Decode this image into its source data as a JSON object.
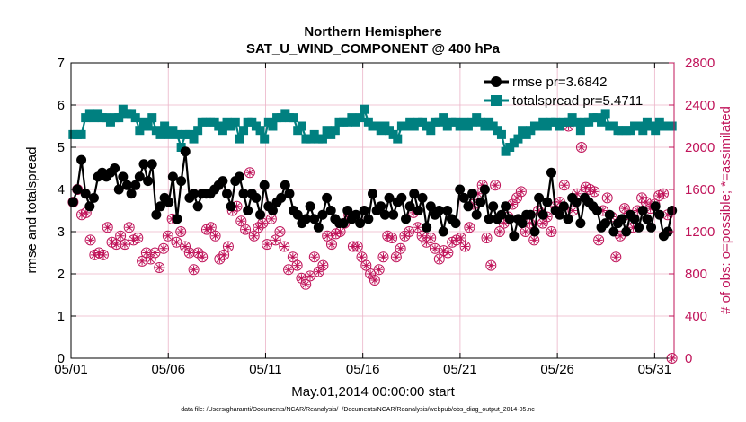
{
  "chart_data": {
    "type": "line",
    "title_line1": "Northern Hemisphere",
    "title_line2": "SAT_U_WIND_COMPONENT @ 400 hPa",
    "xlabel": "May.01,2014 00:00:00 start",
    "ylabel_left": "rmse and totalspread",
    "ylabel_right": "# of obs: o=possible; *=assimilated",
    "footnote": "data file: /Users/gharamti/Documents/NCAR/Reanalysis/~/Documents/NCAR/Reanalysis/webpub/obs_diag_output_2014-05.nc",
    "x_ticks": [
      "05/01",
      "05/06",
      "05/11",
      "05/16",
      "05/21",
      "05/26",
      "05/31"
    ],
    "x_tick_days": [
      1,
      6,
      11,
      16,
      21,
      26,
      31
    ],
    "xlim": [
      1,
      32
    ],
    "ylim_left": [
      0,
      7
    ],
    "ylim_right": [
      0,
      2800
    ],
    "y_ticks_left": [
      "0",
      "1",
      "2",
      "3",
      "4",
      "5",
      "6",
      "7"
    ],
    "y_ticks_right": [
      "0",
      "400",
      "800",
      "1200",
      "1600",
      "2000",
      "2400",
      "2800"
    ],
    "colors": {
      "rmse": "#000000",
      "totalspread": "#008080",
      "obs": "#c0145a",
      "grid": "#ebb4c8"
    },
    "series": [
      {
        "name": "rmse",
        "legend": "rmse pr=3.6842",
        "axis": "left",
        "values": [
          3.7,
          4.0,
          4.7,
          3.9,
          3.6,
          3.8,
          4.3,
          4.4,
          4.3,
          4.4,
          4.5,
          4.0,
          4.3,
          4.1,
          3.9,
          4.1,
          4.3,
          4.6,
          4.2,
          4.6,
          3.4,
          3.6,
          3.8,
          3.7,
          4.3,
          3.3,
          4.2,
          4.9,
          3.8,
          3.9,
          3.6,
          3.9,
          3.9,
          3.9,
          4.0,
          4.1,
          4.2,
          3.9,
          3.6,
          4.2,
          4.3,
          3.9,
          3.5,
          3.9,
          3.8,
          3.4,
          4.1,
          3.6,
          3.5,
          3.7,
          3.8,
          4.1,
          3.9,
          3.5,
          3.4,
          3.2,
          3.3,
          3.6,
          3.3,
          3.1,
          3.4,
          3.8,
          3.5,
          3.3,
          3.2,
          3.2,
          3.5,
          3.3,
          3.4,
          3.2,
          3.5,
          3.3,
          3.9,
          3.5,
          3.6,
          3.4,
          3.8,
          3.4,
          3.7,
          3.8,
          3.3,
          3.6,
          3.9,
          3.5,
          3.8,
          3.1,
          3.6,
          3.4,
          3.5,
          3.0,
          3.5,
          3.3,
          3.2,
          4.0,
          3.8,
          3.6,
          3.9,
          3.4,
          3.7,
          4.0,
          3.3,
          3.6,
          3.3,
          3.4,
          3.6,
          3.3,
          2.9,
          3.3,
          3.2,
          3.4,
          3.4,
          3.0,
          3.8,
          3.4,
          3.7,
          4.4,
          3.5,
          3.4,
          3.6,
          3.3,
          3.8,
          3.7,
          3.2,
          3.8,
          3.7,
          3.6,
          3.5,
          3.1,
          3.2,
          3.4,
          3.0,
          3.2,
          3.3,
          3.0,
          3.4,
          3.3,
          3.1,
          3.5,
          3.3,
          3.1,
          3.6,
          3.4,
          2.9,
          3.0,
          3.5
        ]
      },
      {
        "name": "totalspread",
        "legend": "totalspread pr=5.4711",
        "axis": "left",
        "values": [
          5.3,
          5.3,
          5.3,
          5.7,
          5.8,
          5.7,
          5.8,
          5.7,
          5.7,
          5.6,
          5.7,
          5.7,
          5.9,
          5.8,
          5.8,
          5.7,
          5.4,
          5.6,
          5.5,
          5.7,
          5.4,
          5.3,
          5.5,
          5.3,
          5.4,
          5.3,
          5.0,
          5.3,
          5.3,
          5.2,
          5.4,
          5.6,
          5.6,
          5.6,
          5.6,
          5.5,
          5.4,
          5.6,
          5.5,
          5.6,
          5.2,
          5.4,
          5.6,
          5.6,
          5.5,
          5.4,
          5.2,
          5.6,
          5.5,
          5.7,
          5.7,
          5.8,
          5.7,
          5.7,
          5.4,
          5.5,
          5.2,
          5.2,
          5.3,
          5.2,
          5.2,
          5.4,
          5.3,
          5.4,
          5.6,
          5.6,
          5.6,
          5.7,
          5.6,
          5.7,
          5.9,
          5.6,
          5.5,
          5.5,
          5.4,
          5.5,
          5.4,
          5.3,
          5.2,
          5.5,
          5.5,
          5.6,
          5.5,
          5.6,
          5.6,
          5.5,
          5.4,
          5.6,
          5.6,
          5.7,
          5.5,
          5.6,
          5.6,
          5.5,
          5.6,
          5.5,
          5.6,
          5.7,
          5.6,
          5.5,
          5.6,
          5.5,
          5.4,
          5.3,
          4.9,
          5.0,
          5.1,
          5.2,
          5.4,
          5.3,
          5.4,
          5.5,
          5.5,
          5.6,
          5.5,
          5.6,
          5.6,
          5.5,
          5.6,
          5.6,
          5.7,
          5.6,
          5.4,
          5.6,
          5.6,
          5.7,
          5.7,
          5.6,
          5.8,
          5.5,
          5.5,
          5.4,
          5.4,
          5.4,
          5.4,
          5.5,
          5.5,
          5.4,
          5.6,
          5.5,
          5.4,
          5.6,
          5.5,
          5.5,
          5.5
        ]
      },
      {
        "name": "obs_possible",
        "axis": "right",
        "marker": "o",
        "values": [
          1480,
          1600,
          1360,
          1380,
          1120,
          980,
          1000,
          980,
          1240,
          1100,
          1080,
          1160,
          1080,
          1240,
          1120,
          1140,
          920,
          1000,
          940,
          1000,
          860,
          1040,
          1160,
          1320,
          1100,
          1200,
          1060,
          1000,
          840,
          1000,
          960,
          1220,
          1240,
          1160,
          940,
          980,
          1060,
          1400,
          1440,
          1300,
          1220,
          1760,
          1160,
          1240,
          1280,
          1080,
          1320,
          1120,
          1200,
          1060,
          840,
          960,
          880,
          760,
          700,
          780,
          960,
          820,
          880,
          1160,
          1080,
          1180,
          1200,
          1280,
          1360,
          1060,
          1060,
          960,
          880,
          800,
          740,
          840,
          960,
          1160,
          1140,
          960,
          1040,
          1160,
          1200,
          1380,
          1240,
          1160,
          1100,
          1140,
          1040,
          940,
          1020,
          1000,
          1100,
          1120,
          1140,
          1060,
          1240,
          1460,
          1560,
          1640,
          1140,
          880,
          1640,
          1200,
          1280,
          1340,
          1460,
          1520,
          1580,
          1200,
          1280,
          1120,
          1400,
          1280,
          1340,
          1200,
          1440,
          1480,
          1640,
          2200,
          1400,
          1560,
          2000,
          1620,
          1600,
          1580,
          1120,
          1400,
          1520,
          1340,
          960,
          1160,
          1420,
          1360,
          1240,
          1400,
          1520,
          1480,
          1420,
          1460,
          1540,
          1560,
          1360,
          0
        ]
      },
      {
        "name": "obs_assimilated",
        "axis": "right",
        "marker": "*",
        "values": [
          1480,
          1600,
          1360,
          1380,
          1120,
          980,
          1000,
          980,
          1240,
          1100,
          1080,
          1160,
          1080,
          1240,
          1120,
          1140,
          920,
          1000,
          940,
          1000,
          860,
          1040,
          1160,
          1320,
          1100,
          1200,
          1060,
          1000,
          840,
          1000,
          960,
          1220,
          1240,
          1160,
          940,
          980,
          1060,
          1400,
          1440,
          1300,
          1220,
          1760,
          1160,
          1240,
          1280,
          1080,
          1320,
          1120,
          1200,
          1060,
          840,
          960,
          880,
          760,
          700,
          780,
          960,
          820,
          880,
          1160,
          1080,
          1180,
          1200,
          1280,
          1360,
          1060,
          1060,
          960,
          880,
          800,
          740,
          840,
          960,
          1160,
          1140,
          960,
          1040,
          1160,
          1200,
          1380,
          1240,
          1160,
          1100,
          1140,
          1040,
          940,
          1020,
          1000,
          1100,
          1120,
          1140,
          1060,
          1240,
          1460,
          1560,
          1640,
          1140,
          880,
          1640,
          1200,
          1280,
          1340,
          1460,
          1520,
          1580,
          1200,
          1280,
          1120,
          1400,
          1280,
          1340,
          1200,
          1440,
          1480,
          1640,
          2200,
          1400,
          1560,
          2000,
          1620,
          1600,
          1580,
          1120,
          1400,
          1520,
          1340,
          960,
          1160,
          1420,
          1360,
          1240,
          1400,
          1520,
          1480,
          1420,
          1460,
          1540,
          1560,
          1360,
          0
        ]
      }
    ]
  }
}
